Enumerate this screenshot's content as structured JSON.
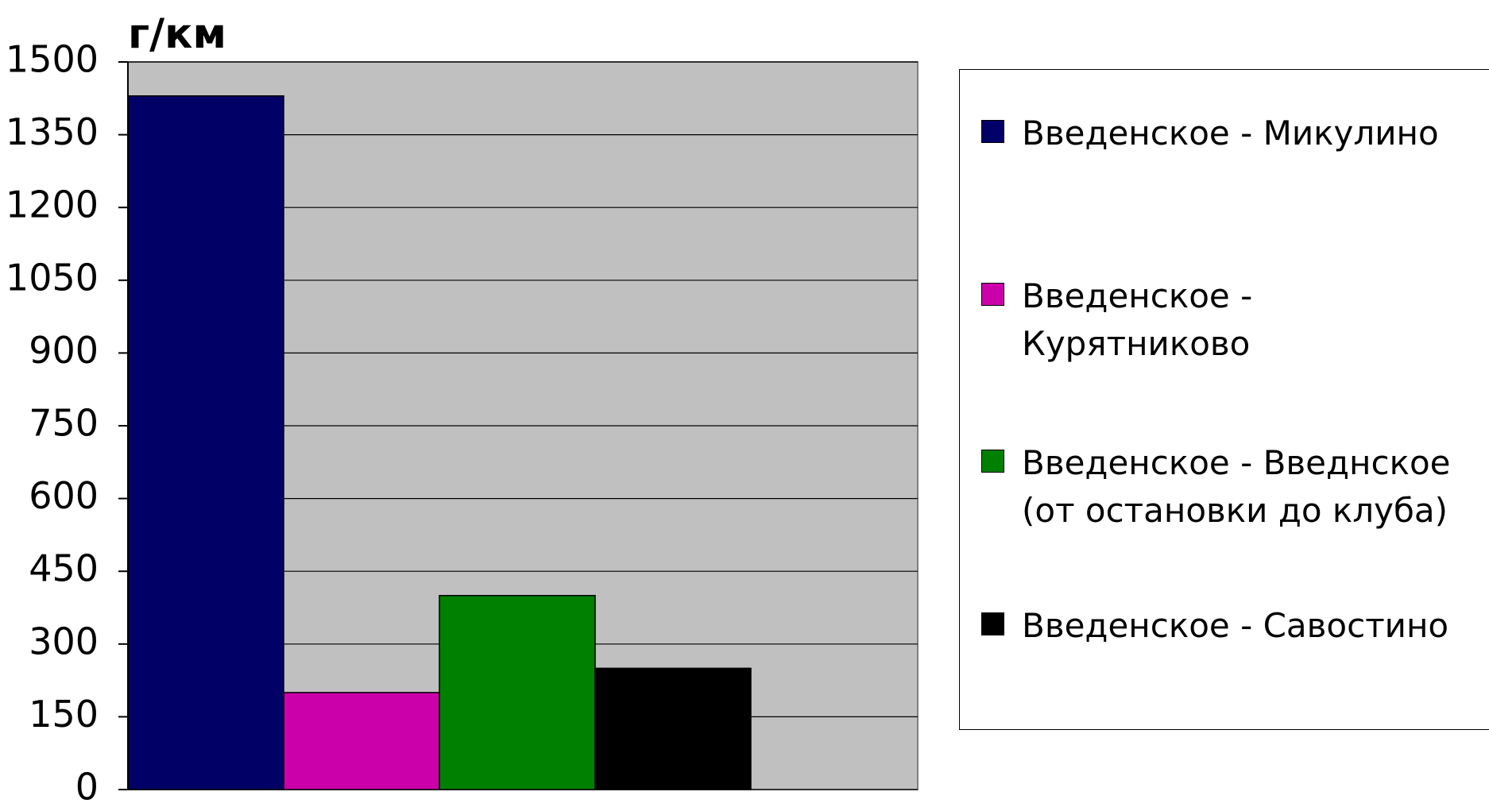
{
  "chart_data": {
    "type": "bar",
    "title": "г/км",
    "series": [
      {
        "name": "Введенское - Микулино",
        "color": "#000066",
        "values": [
          1430
        ]
      },
      {
        "name": "Введенское - Курятниково",
        "color": "#cc00aa",
        "values": [
          200
        ]
      },
      {
        "name": "Введенское - Введнское (от остановки до клуба)",
        "color": "#008000",
        "values": [
          400
        ]
      },
      {
        "name": "Введенское - Савостино",
        "color": "#000000",
        "values": [
          250
        ]
      }
    ],
    "ylim": [
      0,
      1500
    ],
    "yticks": [
      0,
      150,
      300,
      450,
      600,
      750,
      900,
      1050,
      1200,
      1350,
      1500
    ],
    "grid": true,
    "legend": "right"
  }
}
